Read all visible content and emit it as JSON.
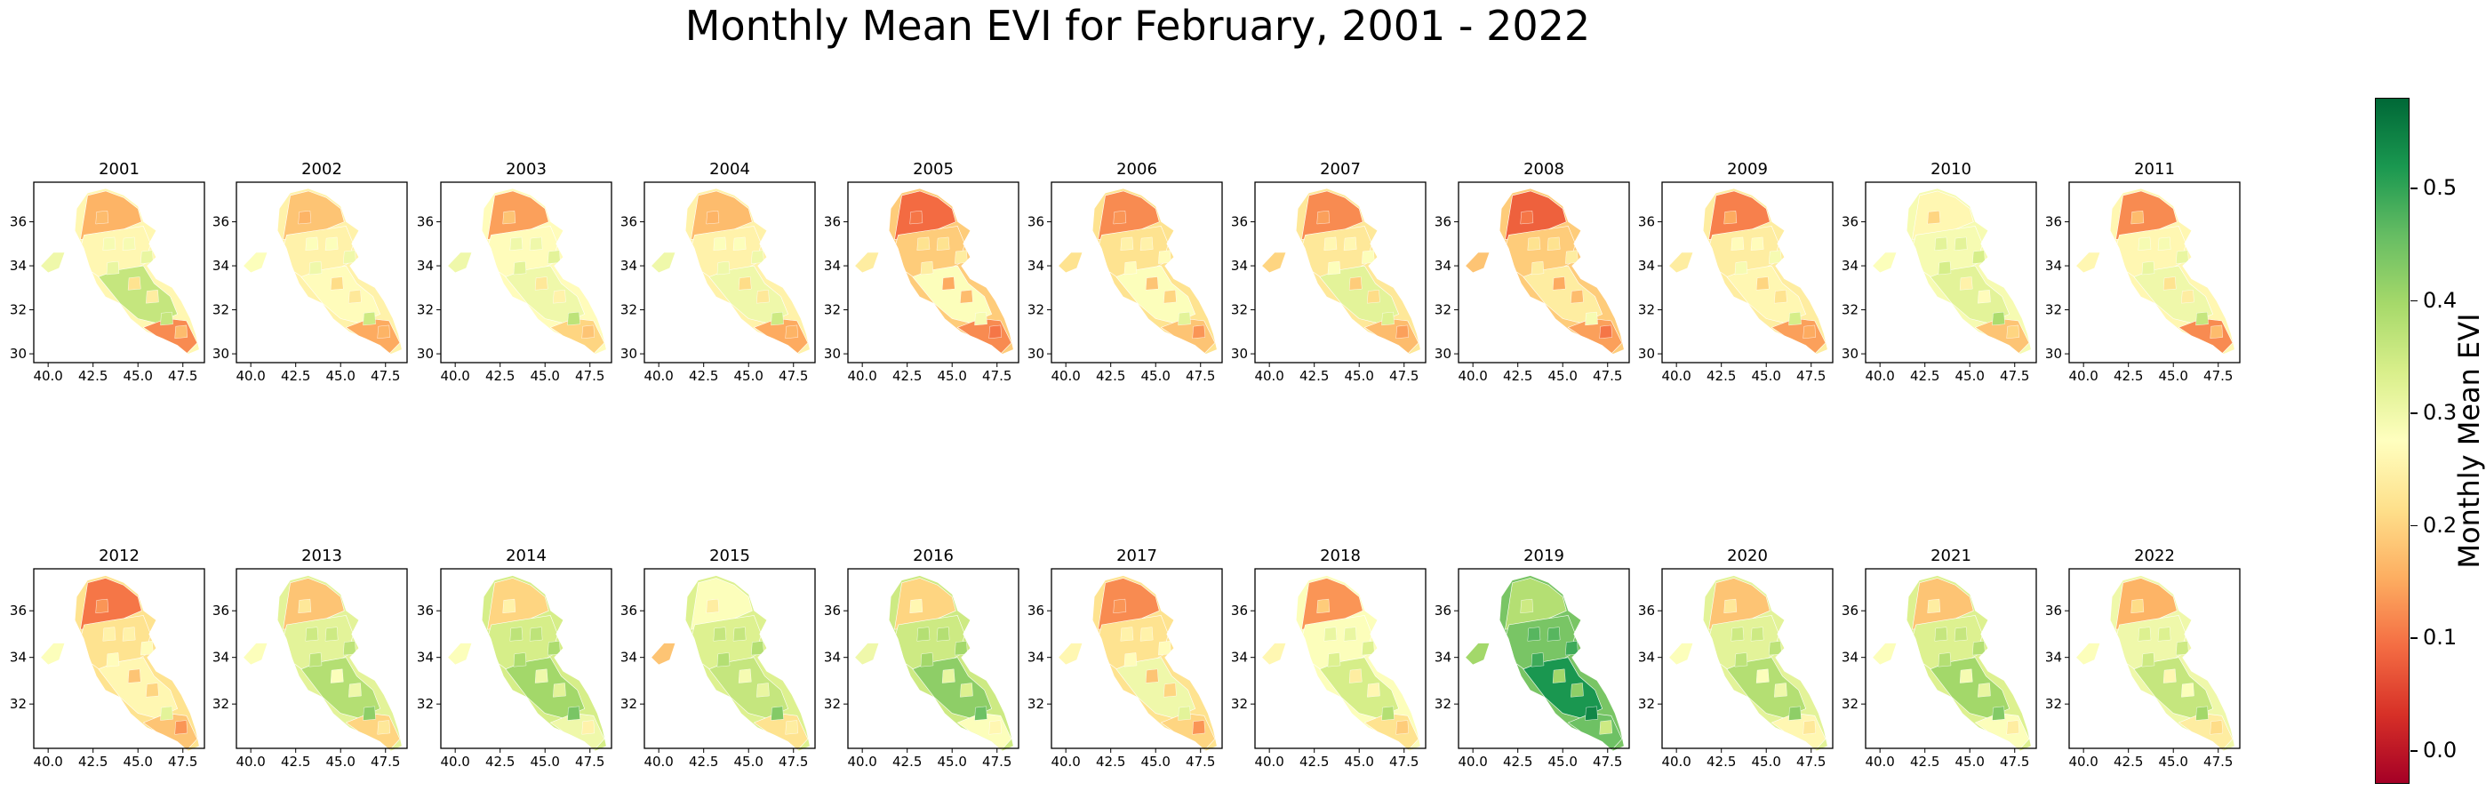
{
  "title": "Monthly Mean EVI for February, 2001 - 2022",
  "colorbar": {
    "label": "Monthly Mean EVI",
    "colormap": "RdYlGn",
    "min": -0.03,
    "max": 0.58,
    "ticks": [
      "0.0",
      "0.1",
      "0.2",
      "0.3",
      "0.4",
      "0.5"
    ],
    "tick_values": [
      0.0,
      0.1,
      0.2,
      0.3,
      0.4,
      0.5
    ],
    "colors": [
      "#a50026",
      "#d73027",
      "#f46d43",
      "#fdae61",
      "#fee08b",
      "#ffffbf",
      "#d9ef8b",
      "#a6d96a",
      "#66bd63",
      "#1a9850",
      "#006837"
    ]
  },
  "x_tick_labels": [
    "40.0",
    "42.5",
    "45.0",
    "47.5"
  ],
  "y_tick_labels_a": [
    "30",
    "32",
    "34",
    "36"
  ],
  "y_tick_labels_b": [
    "32",
    "34",
    "36"
  ],
  "panels": [
    {
      "year": "2001",
      "north": 0.16,
      "central": 0.26,
      "south": 0.36,
      "southeast": 0.12,
      "west": 0.3
    },
    {
      "year": "2002",
      "north": 0.18,
      "central": 0.25,
      "south": 0.27,
      "southeast": 0.15,
      "west": 0.28
    },
    {
      "year": "2003",
      "north": 0.14,
      "central": 0.27,
      "south": 0.3,
      "southeast": 0.2,
      "west": 0.3
    },
    {
      "year": "2004",
      "north": 0.17,
      "central": 0.25,
      "south": 0.3,
      "southeast": 0.15,
      "west": 0.3
    },
    {
      "year": "2005",
      "north": 0.09,
      "central": 0.19,
      "south": 0.28,
      "southeast": 0.12,
      "west": 0.24
    },
    {
      "year": "2006",
      "north": 0.12,
      "central": 0.22,
      "south": 0.28,
      "southeast": 0.18,
      "west": 0.22
    },
    {
      "year": "2007",
      "north": 0.12,
      "central": 0.23,
      "south": 0.32,
      "southeast": 0.17,
      "west": 0.2
    },
    {
      "year": "2008",
      "north": 0.08,
      "central": 0.19,
      "south": 0.24,
      "southeast": 0.14,
      "west": 0.18
    },
    {
      "year": "2009",
      "north": 0.11,
      "central": 0.24,
      "south": 0.26,
      "southeast": 0.14,
      "west": 0.24
    },
    {
      "year": "2010",
      "north": 0.26,
      "central": 0.29,
      "south": 0.32,
      "southeast": 0.18,
      "west": 0.28
    },
    {
      "year": "2011",
      "north": 0.12,
      "central": 0.26,
      "south": 0.3,
      "southeast": 0.12,
      "west": 0.26
    },
    {
      "year": "2012",
      "north": 0.1,
      "central": 0.22,
      "south": 0.26,
      "southeast": 0.18,
      "west": 0.28
    },
    {
      "year": "2013",
      "north": 0.18,
      "central": 0.32,
      "south": 0.38,
      "southeast": 0.2,
      "west": 0.28
    },
    {
      "year": "2014",
      "north": 0.2,
      "central": 0.34,
      "south": 0.4,
      "southeast": 0.3,
      "west": 0.28
    },
    {
      "year": "2015",
      "north": 0.28,
      "central": 0.33,
      "south": 0.36,
      "southeast": 0.22,
      "west": 0.18
    },
    {
      "year": "2016",
      "north": 0.2,
      "central": 0.35,
      "south": 0.42,
      "southeast": 0.28,
      "west": 0.3
    },
    {
      "year": "2017",
      "north": 0.12,
      "central": 0.22,
      "south": 0.3,
      "southeast": 0.2,
      "west": 0.26
    },
    {
      "year": "2018",
      "north": 0.13,
      "central": 0.28,
      "south": 0.34,
      "southeast": 0.22,
      "west": 0.26
    },
    {
      "year": "2019",
      "north": 0.38,
      "central": 0.44,
      "south": 0.52,
      "southeast": 0.45,
      "west": 0.4
    },
    {
      "year": "2020",
      "north": 0.18,
      "central": 0.32,
      "south": 0.38,
      "southeast": 0.26,
      "west": 0.28
    },
    {
      "year": "2021",
      "north": 0.18,
      "central": 0.33,
      "south": 0.4,
      "southeast": 0.28,
      "west": 0.28
    },
    {
      "year": "2022",
      "north": 0.16,
      "central": 0.3,
      "south": 0.36,
      "southeast": 0.24,
      "west": 0.28
    }
  ]
}
